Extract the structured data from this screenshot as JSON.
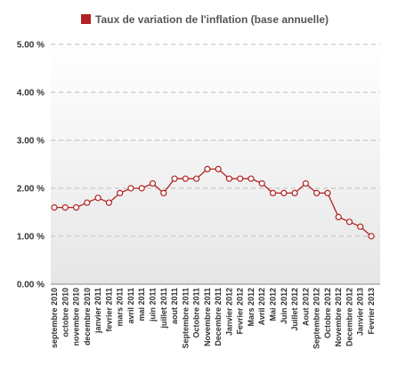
{
  "chart_data": {
    "type": "line",
    "title": "",
    "xlabel": "",
    "ylabel": "",
    "ylim": [
      0,
      5
    ],
    "grid": "horizontal-dashed",
    "legend_position": "top",
    "series": [
      {
        "name": "Taux de variation de l'inflation (base annuelle)",
        "color": "#b22222",
        "values": [
          1.6,
          1.6,
          1.6,
          1.7,
          1.8,
          1.7,
          1.9,
          2.0,
          2.0,
          2.1,
          1.9,
          2.2,
          2.2,
          2.2,
          2.4,
          2.4,
          2.2,
          2.2,
          2.2,
          2.1,
          1.9,
          1.9,
          1.9,
          2.1,
          1.9,
          1.9,
          1.4,
          1.3,
          1.2,
          1.0
        ]
      }
    ],
    "categories": [
      "septembre 2010",
      "octobre 2010",
      "novembre 2010",
      "decembre 2010",
      "janvier 2011",
      "fevrier 2011",
      "mars 2011",
      "avril 2011",
      "mai 2011",
      "juin 2011",
      "juillet 2011",
      "aout 2011",
      "Septembre 2011",
      "Octobre 2011",
      "Novembre 2011",
      "Decembre 2011",
      "Janvier 2012",
      "Fevrier 2012",
      "Mars 2012",
      "Avril 2012",
      "Mai 2012",
      "Juin 2012",
      "Juillet 2012",
      "Aout 2012",
      "Septembre 2012",
      "Octobre 2012",
      "Novembre 2012",
      "Decembre 2012",
      "Janvier 2013",
      "Fevrier 2013"
    ],
    "y_ticks": [
      "0.00 %",
      "1.00 %",
      "2.00 %",
      "3.00 %",
      "4.00 %",
      "5.00 %"
    ],
    "colors": {
      "line": "#b22222",
      "marker_fill": "#ffffff",
      "grid": "#bbbbbb",
      "plot_bg_top": "#ffffff",
      "plot_bg_bottom": "#e6e6e6",
      "axis_label": "#333333"
    }
  }
}
